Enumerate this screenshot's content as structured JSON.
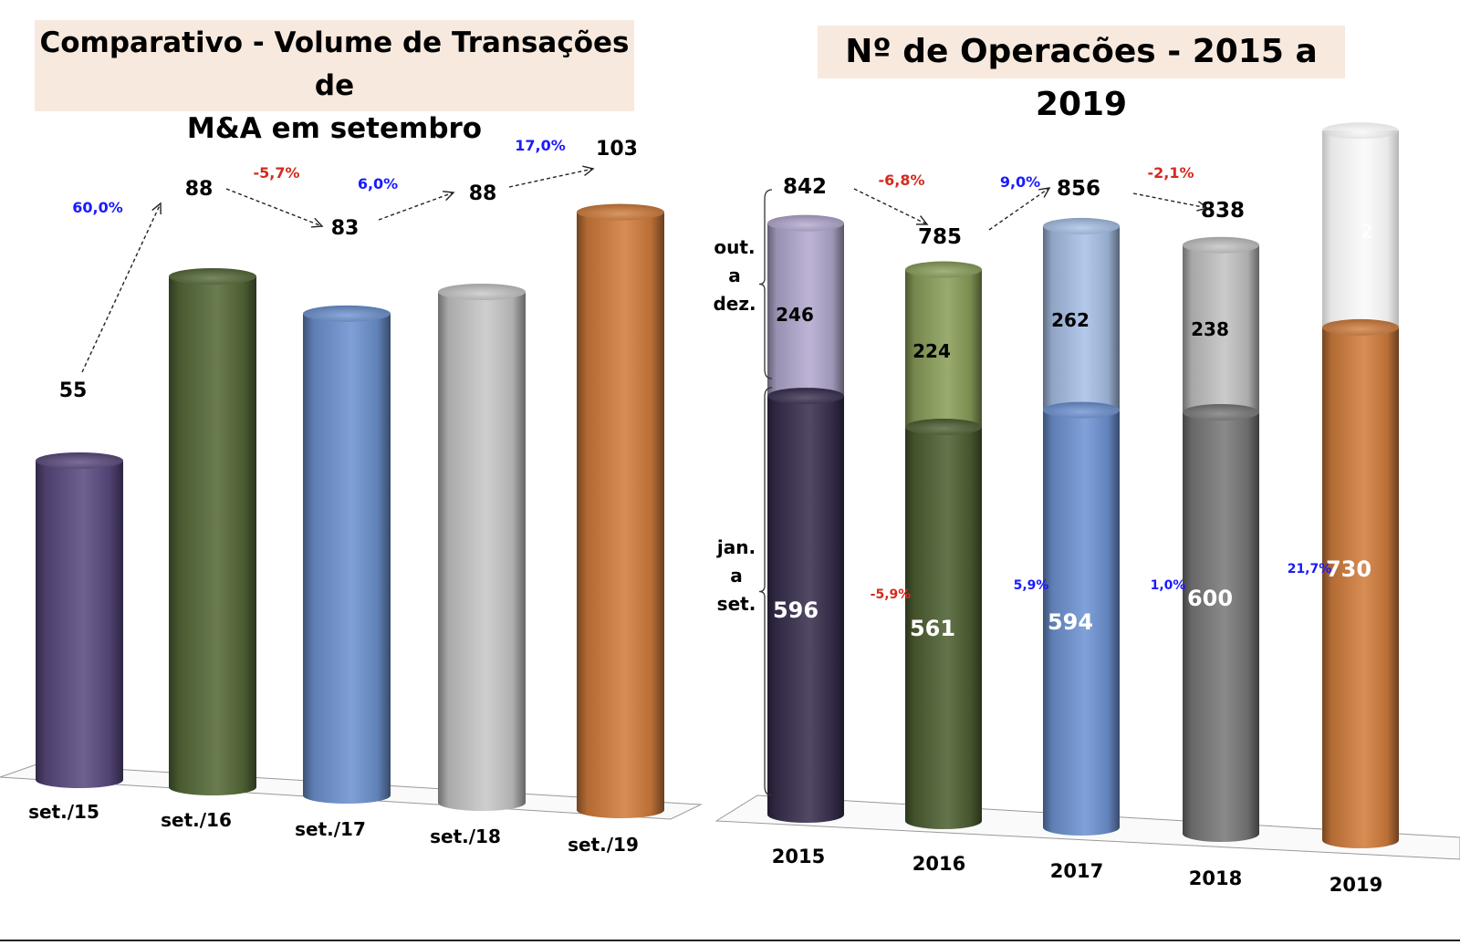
{
  "colors": {
    "title_bg": "#f7e9dd",
    "positive": "#1a1aff",
    "negative": "#d42a1e",
    "bar_2015_lower": "#3a3050",
    "bar_2015_upper": "#b4aad0",
    "bar_2016_lower": "#4f6133",
    "bar_2016_upper": "#8ba05a",
    "bar_2017_lower": "#6f94d4",
    "bar_2017_upper": "#a9c2e8",
    "bar_2018_lower": "#7a7a7a",
    "bar_2018_upper": "#c4c4c4",
    "bar_2019_lower": "#d37e3d",
    "bar_2019_upper": "#f6f6f6",
    "left_purple": "#5a4a80",
    "left_green": "#566a38",
    "left_blue": "#6e93d2",
    "left_silver": "#c8c8c8",
    "left_orange": "#d27d3c"
  },
  "chart_data": [
    {
      "type": "bar",
      "title": "Comparativo - Volume de Transações de M&A em setembro",
      "title_lines": [
        "Comparativo - Volume de Transações de",
        "M&A em setembro"
      ],
      "xlabel": "",
      "ylabel": "",
      "grid": false,
      "style": "3d-cylinder",
      "categories": [
        "set./15",
        "set./16",
        "set./17",
        "set./18",
        "set./19"
      ],
      "values": [
        55,
        88,
        83,
        88,
        103
      ],
      "value_labels": [
        "55",
        "88",
        "83",
        "88",
        "103"
      ],
      "changes": [
        {
          "from": "set./15",
          "to": "set./16",
          "label": "60,0%",
          "sign": "positive"
        },
        {
          "from": "set./16",
          "to": "set./17",
          "label": "-5,7%",
          "sign": "negative"
        },
        {
          "from": "set./17",
          "to": "set./18",
          "label": "6,0%",
          "sign": "positive"
        },
        {
          "from": "set./18",
          "to": "set./19",
          "label": "17,0%",
          "sign": "positive"
        }
      ],
      "ylim": [
        0,
        110
      ]
    },
    {
      "type": "bar",
      "stacked": true,
      "title": "Nº de Operacões - 2015 a 2019",
      "xlabel": "",
      "ylabel": "",
      "grid": false,
      "style": "3d-cylinder",
      "categories": [
        "2015",
        "2016",
        "2017",
        "2018",
        "2019"
      ],
      "series": [
        {
          "name": "jan. a set.",
          "label_lines": [
            "jan.",
            "a",
            "set."
          ],
          "values": [
            596,
            561,
            594,
            600,
            730
          ]
        },
        {
          "name": "out. a dez.",
          "label_lines": [
            "out.",
            "a",
            "dez."
          ],
          "values": [
            246,
            224,
            262,
            238,
            null
          ]
        }
      ],
      "segment_labels_lower": [
        "596",
        "561",
        "594",
        "600",
        "730"
      ],
      "segment_labels_upper": [
        "246",
        "224",
        "262",
        "238",
        "2"
      ],
      "totals": [
        "842",
        "785",
        "856",
        "838",
        null
      ],
      "total_changes": [
        {
          "from": "2015",
          "to": "2016",
          "label": "-6,8%",
          "sign": "negative"
        },
        {
          "from": "2016",
          "to": "2017",
          "label": "9,0%",
          "sign": "positive"
        },
        {
          "from": "2017",
          "to": "2018",
          "label": "-2,1%",
          "sign": "negative"
        }
      ],
      "ytd_changes": [
        {
          "from": "2015",
          "to": "2016",
          "label": "-5,9%",
          "sign": "negative"
        },
        {
          "from": "2016",
          "to": "2017",
          "label": "5,9%",
          "sign": "positive"
        },
        {
          "from": "2017",
          "to": "2018",
          "label": "1,0%",
          "sign": "positive"
        },
        {
          "from": "2018",
          "to": "2019",
          "label": "21,7%",
          "sign": "positive"
        }
      ],
      "ylim": [
        0,
        900
      ]
    }
  ]
}
